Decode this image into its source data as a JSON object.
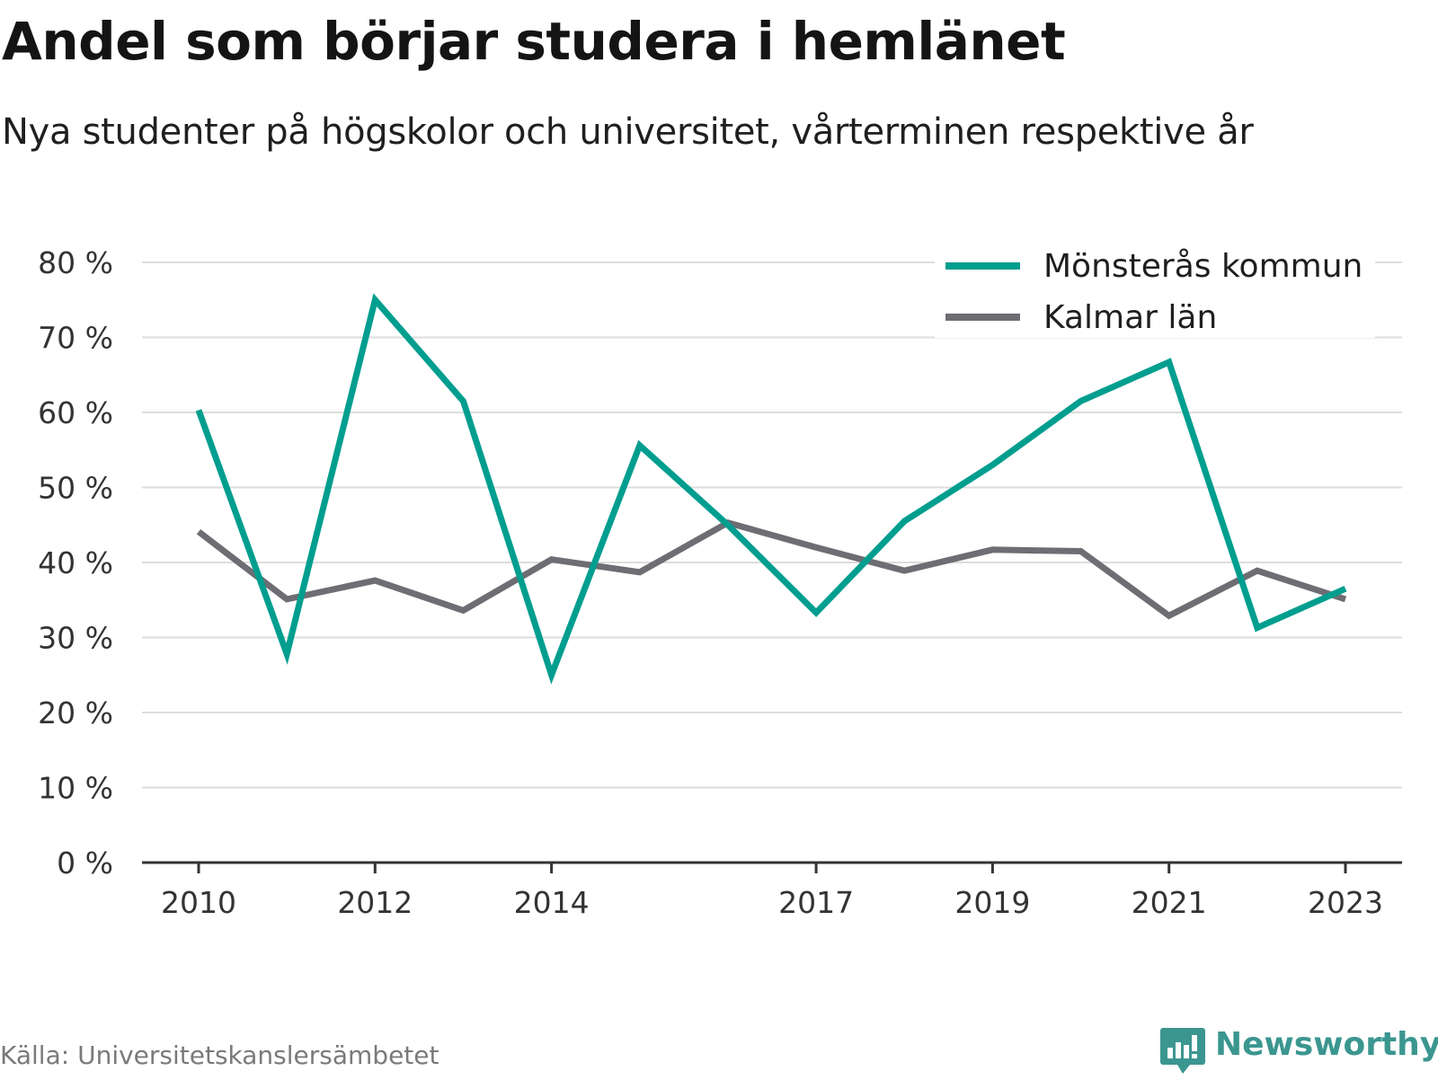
{
  "title": "Andel som börjar studera i hemlänet",
  "subtitle": "Nya studenter på högskolor och universitet, vårterminen respektive år",
  "source": "Källa: Universitetskanslersämbetet",
  "brand": "Newsworthy",
  "colors": {
    "series_1": "#009e8f",
    "series_2": "#6e6d74",
    "grid": "#dddddd",
    "axis": "#333333",
    "brand": "#3b9690"
  },
  "chart_data": {
    "type": "line",
    "title": "Andel som börjar studera i hemlänet",
    "subtitle": "Nya studenter på högskolor och universitet, vårterminen respektive år",
    "x": [
      2010,
      2011,
      2012,
      2013,
      2014,
      2015,
      2016,
      2017,
      2018,
      2019,
      2020,
      2021,
      2022,
      2023
    ],
    "x_tick_labels": [
      "2010",
      "2012",
      "2014",
      "2017",
      "2019",
      "2021",
      "2023"
    ],
    "y_tick_labels": [
      "0 %",
      "10 %",
      "20 %",
      "30 %",
      "40 %",
      "50 %",
      "60 %",
      "70 %",
      "80 %"
    ],
    "ylim": [
      0,
      80
    ],
    "grid": true,
    "legend_position": "top-right",
    "series": [
      {
        "name": "Mönsterås kommun",
        "color": "#009e8f",
        "values": [
          60.3,
          27.8,
          75.0,
          61.5,
          25.0,
          55.6,
          45.0,
          33.3,
          45.5,
          53.0,
          61.5,
          66.7,
          31.3,
          36.5
        ]
      },
      {
        "name": "Kalmar län",
        "color": "#6e6d74",
        "values": [
          44.1,
          35.1,
          37.6,
          33.6,
          40.4,
          38.7,
          45.3,
          42.0,
          38.9,
          41.7,
          41.5,
          32.9,
          38.9,
          35.1
        ]
      }
    ]
  }
}
